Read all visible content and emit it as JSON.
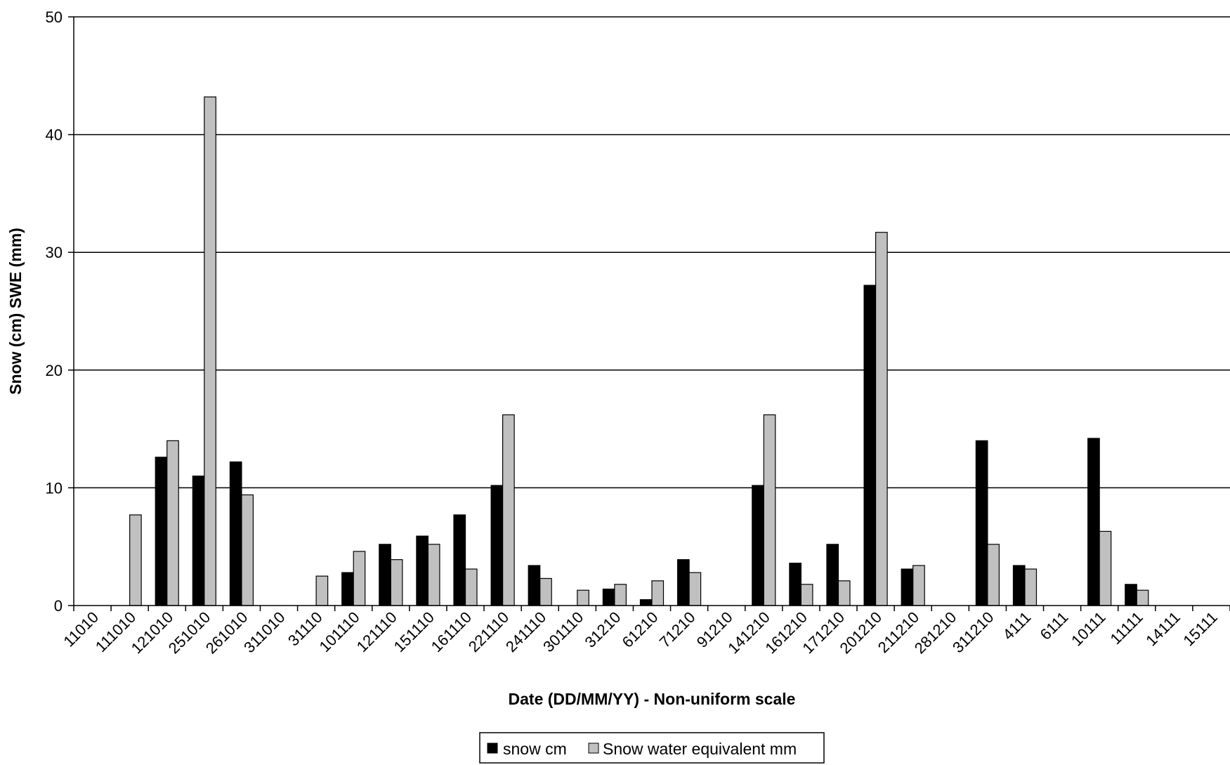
{
  "chart_data": {
    "type": "bar",
    "title": "",
    "xlabel": "Date (DD/MM/YY) - Non-uniform scale",
    "ylabel": "Snow (cm) SWE (mm)",
    "ylim": [
      0,
      50
    ],
    "yticks": [
      0,
      10,
      20,
      30,
      40,
      50
    ],
    "grid": true,
    "legend_position": "bottom",
    "categories": [
      "11010",
      "111010",
      "121010",
      "251010",
      "261010",
      "311010",
      "31110",
      "101110",
      "121110",
      "151110",
      "161110",
      "221110",
      "241110",
      "301110",
      "31210",
      "61210",
      "71210",
      "91210",
      "141210",
      "161210",
      "171210",
      "201210",
      "211210",
      "281210",
      "311210",
      "4111",
      "6111",
      "10111",
      "11111",
      "14111",
      "15111"
    ],
    "series": [
      {
        "name": "snow cm",
        "color": "#000000",
        "values": [
          0,
          0,
          12.6,
          11.0,
          12.2,
          0,
          0,
          2.8,
          5.2,
          5.9,
          7.7,
          10.2,
          3.4,
          0,
          1.4,
          0.5,
          3.9,
          0,
          10.2,
          3.6,
          5.2,
          27.2,
          3.1,
          0,
          14.0,
          3.4,
          0,
          14.2,
          1.8,
          0,
          0
        ]
      },
      {
        "name": "Snow water equivalent mm",
        "color": "#c0c0c0",
        "values": [
          0,
          7.7,
          14.0,
          43.2,
          9.4,
          0,
          2.5,
          4.6,
          3.9,
          5.2,
          3.1,
          16.2,
          2.3,
          1.3,
          1.8,
          2.1,
          2.8,
          0,
          16.2,
          1.8,
          2.1,
          31.7,
          3.4,
          0,
          5.2,
          3.1,
          0,
          6.3,
          1.3,
          0,
          0
        ]
      }
    ]
  }
}
